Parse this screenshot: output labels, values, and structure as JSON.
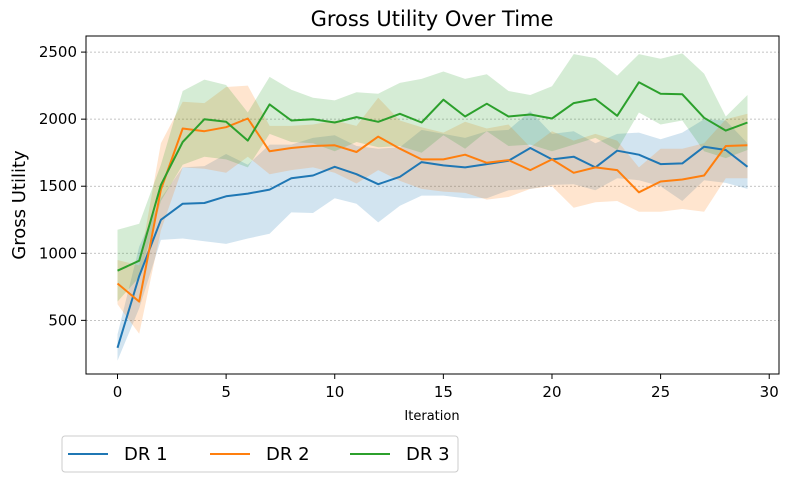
{
  "chart_data": {
    "type": "line",
    "title": "Gross Utility Over Time",
    "xlabel": "Iteration",
    "ylabel": "Gross Utility",
    "xlim": [
      -1.45,
      30.45
    ],
    "ylim": [
      100,
      2620
    ],
    "xticks": [
      0,
      5,
      10,
      15,
      20,
      25,
      30
    ],
    "yticks": [
      500,
      1000,
      1500,
      2000,
      2500
    ],
    "grid": "horizontal dotted",
    "legend_position": "bottom-left, below plot",
    "x": [
      0,
      1,
      2,
      3,
      4,
      5,
      6,
      7,
      8,
      9,
      10,
      11,
      12,
      13,
      14,
      15,
      16,
      17,
      18,
      19,
      20,
      21,
      22,
      23,
      24,
      25,
      26,
      27,
      28,
      29
    ],
    "series": [
      {
        "name": "DR 1",
        "color": "#1f77b4",
        "values": [
          295,
          830,
          1250,
          1370,
          1375,
          1425,
          1445,
          1475,
          1560,
          1580,
          1645,
          1590,
          1515,
          1570,
          1680,
          1655,
          1640,
          1665,
          1690,
          1785,
          1700,
          1720,
          1640,
          1765,
          1735,
          1665,
          1670,
          1795,
          1770,
          1645
        ],
        "lower": [
          200,
          590,
          1100,
          1110,
          1090,
          1070,
          1110,
          1145,
          1305,
          1300,
          1410,
          1370,
          1230,
          1355,
          1430,
          1430,
          1410,
          1410,
          1470,
          1480,
          1510,
          1515,
          1470,
          1560,
          1545,
          1500,
          1390,
          1545,
          1525,
          1480
        ],
        "upper": [
          395,
          1050,
          1410,
          1640,
          1650,
          1740,
          1660,
          1810,
          1810,
          1860,
          1880,
          1800,
          1780,
          1790,
          1920,
          1890,
          1860,
          1910,
          1920,
          2060,
          1890,
          1910,
          1820,
          1890,
          1900,
          1850,
          1900,
          2000,
          1990,
          1820
        ]
      },
      {
        "name": "DR 2",
        "color": "#ff7f0e",
        "values": [
          775,
          640,
          1475,
          1930,
          1910,
          1940,
          2005,
          1760,
          1785,
          1800,
          1805,
          1755,
          1870,
          1780,
          1700,
          1700,
          1735,
          1675,
          1695,
          1620,
          1700,
          1600,
          1640,
          1620,
          1455,
          1535,
          1550,
          1580,
          1800,
          1805
        ],
        "lower": [
          620,
          400,
          1170,
          1640,
          1630,
          1600,
          1720,
          1590,
          1620,
          1640,
          1600,
          1520,
          1620,
          1540,
          1480,
          1460,
          1450,
          1400,
          1420,
          1480,
          1500,
          1340,
          1380,
          1390,
          1310,
          1310,
          1330,
          1310,
          1560,
          1560
        ],
        "upper": [
          950,
          910,
          1820,
          2130,
          2120,
          2240,
          2250,
          1950,
          1950,
          1960,
          1990,
          1950,
          2160,
          1990,
          1940,
          1900,
          1980,
          1930,
          1960,
          1790,
          1910,
          1840,
          1890,
          1840,
          1640,
          1780,
          1780,
          1820,
          2000,
          2040
        ]
      },
      {
        "name": "DR 3",
        "color": "#2ca02c",
        "values": [
          870,
          945,
          1510,
          1830,
          2000,
          1980,
          1840,
          2110,
          1990,
          2000,
          1975,
          2015,
          1980,
          2040,
          1975,
          2145,
          2020,
          2115,
          2020,
          2035,
          2005,
          2120,
          2150,
          2025,
          2275,
          2190,
          2185,
          2010,
          1915,
          1975
        ],
        "lower": [
          640,
          820,
          1390,
          1660,
          1720,
          1700,
          1640,
          1890,
          1830,
          1820,
          1760,
          1830,
          1790,
          1800,
          1750,
          1880,
          1780,
          1910,
          1800,
          1810,
          1760,
          1810,
          1860,
          1770,
          2050,
          1960,
          1990,
          1760,
          1710,
          1770
        ],
        "upper": [
          1175,
          1220,
          1660,
          2210,
          2295,
          2255,
          2050,
          2315,
          2220,
          2160,
          2140,
          2200,
          2190,
          2270,
          2300,
          2355,
          2300,
          2335,
          2210,
          2180,
          2245,
          2485,
          2455,
          2325,
          2485,
          2450,
          2490,
          2340,
          2020,
          2180
        ]
      }
    ]
  }
}
